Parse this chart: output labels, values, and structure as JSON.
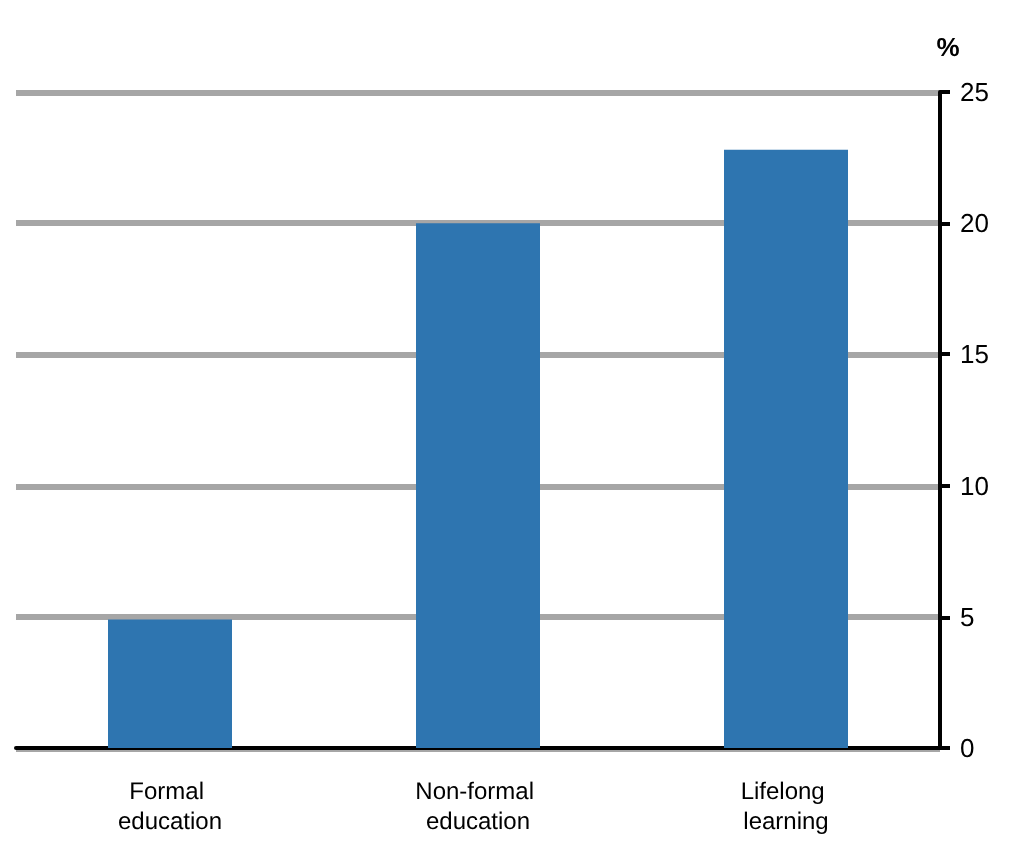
{
  "chart_data": {
    "type": "bar",
    "categories": [
      "Formal education",
      "Non-formal education",
      "Lifelong learning"
    ],
    "values": [
      4.9,
      20,
      22.8
    ],
    "color": "#2e75b0",
    "ylabel": "%",
    "ylim": [
      0,
      25
    ],
    "yticks": [
      0,
      5,
      10,
      15,
      20,
      25
    ],
    "grid": "y"
  }
}
